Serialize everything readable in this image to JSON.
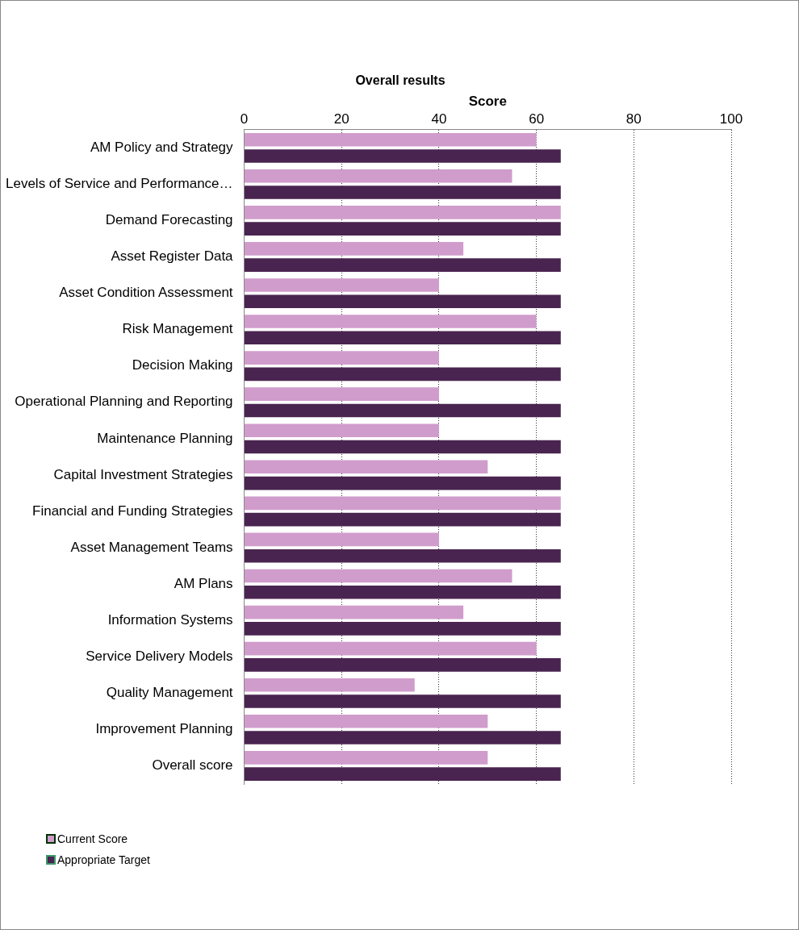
{
  "chart_data": {
    "type": "bar",
    "orientation": "horizontal",
    "title": "Overall results",
    "xlabel": "Score",
    "categories": [
      "AM Policy and Strategy",
      "Levels of Service and Performance…",
      "Demand Forecasting",
      "Asset Register Data",
      "Asset Condition Assessment",
      "Risk Management",
      "Decision Making",
      "Operational Planning and Reporting",
      "Maintenance Planning",
      "Capital Investment Strategies",
      "Financial and Funding Strategies",
      "Asset Management Teams",
      "AM Plans",
      "Information Systems",
      "Service Delivery Models",
      "Quality Management",
      "Improvement Planning",
      "Overall score"
    ],
    "series": [
      {
        "name": "Current Score",
        "color": "#d09ccc",
        "values": [
          60,
          55,
          65,
          45,
          40,
          60,
          40,
          40,
          40,
          50,
          65,
          40,
          55,
          45,
          60,
          35,
          50,
          50
        ]
      },
      {
        "name": "Appropriate Target",
        "color": "#4a2450",
        "values": [
          65,
          65,
          65,
          65,
          65,
          65,
          65,
          65,
          65,
          65,
          65,
          65,
          65,
          65,
          65,
          65,
          65,
          65
        ]
      }
    ],
    "xlim": [
      0,
      100
    ],
    "xticks": [
      0,
      20,
      40,
      60,
      80,
      100
    ],
    "grid": "x",
    "legend": "bottom left"
  }
}
